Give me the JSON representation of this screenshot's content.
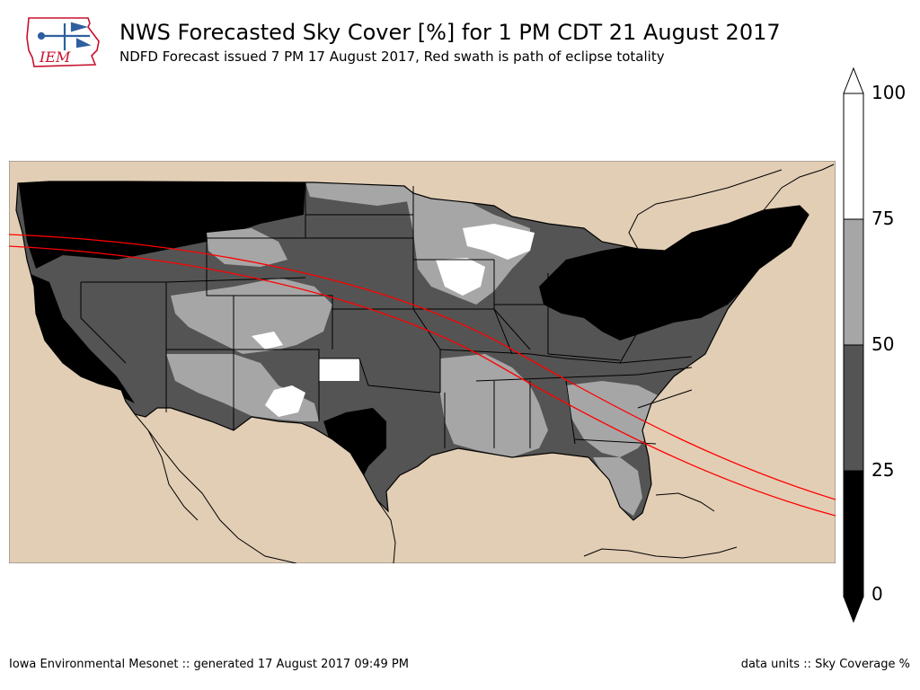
{
  "header": {
    "title": "NWS Forecasted Sky Cover [%] for 1 PM CDT 21 August 2017",
    "subtitle": "NDFD Forecast issued 7 PM 17 August 2017, Red swath is path of eclipse totality",
    "logo_text": "IEM"
  },
  "footer": {
    "left": "Iowa Environmental Mesonet :: generated 17 August 2017 09:49 PM",
    "right": "data units :: Sky Coverage %"
  },
  "colorbar": {
    "labels": [
      "100",
      "75",
      "50",
      "25",
      "0"
    ],
    "bins": [
      {
        "range": [
          75,
          100
        ],
        "color": "#ffffff"
      },
      {
        "range": [
          50,
          75
        ],
        "color": "#a6a6a6"
      },
      {
        "range": [
          25,
          50
        ],
        "color": "#545454"
      },
      {
        "range": [
          0,
          25
        ],
        "color": "#000000"
      }
    ]
  },
  "colors": {
    "background": "#e2ceb5",
    "border": "#000000",
    "eclipse_path": "#ff0000",
    "logo_red": "#c8102e",
    "logo_blue": "#2f5f9e"
  }
}
